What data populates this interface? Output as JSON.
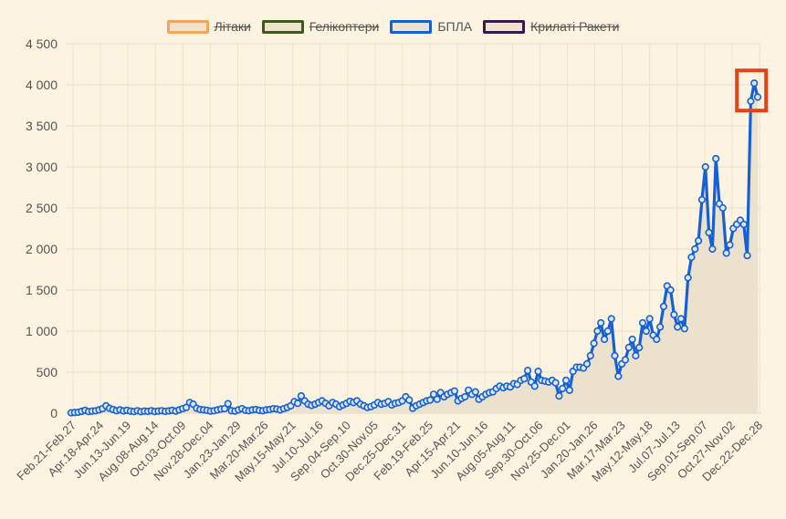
{
  "chart_data": {
    "type": "area",
    "title": "",
    "xlabel": "",
    "ylabel": "",
    "ylim": [
      0,
      4500
    ],
    "yticks": [
      0,
      500,
      1000,
      1500,
      2000,
      2500,
      3000,
      3500,
      4000,
      4500
    ],
    "ytick_labels": [
      "0",
      "500",
      "1 000",
      "1 500",
      "2 000",
      "2 500",
      "3 000",
      "3 500",
      "4 000",
      "4 500"
    ],
    "x_tick_labels": [
      "Feb.21-Feb.27",
      "Apr.18-Apr.24",
      "Jun.13-Jun.19",
      "Aug.08-Aug.14",
      "Oct.03-Oct.09",
      "Nov.28-Dec.04",
      "Jan.23-Jan.29",
      "Mar.20-Mar.26",
      "May.15-May.21",
      "Jul.10-Jul.16",
      "Sep.04-Sep.10",
      "Oct.30-Nov.05",
      "Dec.25-Dec.31",
      "Feb.19-Feb.25",
      "Apr.15-Apr.21",
      "Jun.10-Jun.16",
      "Aug.05-Aug.11",
      "Sep.30-Oct.06",
      "Nov.25-Dec.01",
      "Jan.20-Jan.26",
      "Mar.17-Mar.23",
      "May.12-May.18",
      "Jul.07-Jul.13",
      "Sep.01-Sep.07",
      "Oct.27-Nov.02",
      "Dec.22-Dec.28"
    ],
    "legend": [
      {
        "name": "Літаки",
        "color": "#f2a65a",
        "hidden": true
      },
      {
        "name": "Гелікоптери",
        "color": "#3e5a1e",
        "hidden": true
      },
      {
        "name": "БПЛА",
        "color": "#1560d4",
        "hidden": false
      },
      {
        "name": "Крилаті Ракети",
        "color": "#3a1a4a",
        "hidden": true
      }
    ],
    "series": [
      {
        "name": "БПЛА",
        "color": "#1560d4",
        "fill": "#ece1cc",
        "values": [
          5,
          8,
          12,
          22,
          35,
          20,
          25,
          30,
          40,
          55,
          90,
          60,
          45,
          30,
          40,
          28,
          35,
          25,
          20,
          30,
          18,
          25,
          22,
          30,
          20,
          25,
          30,
          22,
          28,
          35,
          25,
          40,
          55,
          70,
          130,
          110,
          60,
          45,
          40,
          35,
          25,
          30,
          40,
          50,
          55,
          115,
          30,
          25,
          40,
          55,
          35,
          30,
          40,
          45,
          35,
          30,
          40,
          45,
          55,
          50,
          40,
          55,
          70,
          90,
          140,
          120,
          210,
          150,
          110,
          95,
          110,
          130,
          150,
          120,
          90,
          130,
          110,
          80,
          100,
          120,
          145,
          130,
          150,
          110,
          90,
          70,
          80,
          100,
          130,
          110,
          120,
          140,
          100,
          120,
          130,
          150,
          200,
          160,
          60,
          90,
          110,
          130,
          150,
          160,
          230,
          170,
          250,
          200,
          230,
          250,
          270,
          150,
          180,
          200,
          280,
          230,
          260,
          170,
          200,
          230,
          250,
          260,
          300,
          330,
          310,
          330,
          320,
          360,
          350,
          400,
          420,
          520,
          380,
          330,
          510,
          400,
          390,
          380,
          400,
          370,
          210,
          300,
          400,
          280,
          510,
          560,
          560,
          550,
          600,
          700,
          850,
          1000,
          1100,
          900,
          1000,
          1150,
          700,
          450,
          600,
          650,
          800,
          900,
          700,
          800,
          1100,
          1000,
          1150,
          950,
          900,
          1050,
          1300,
          1550,
          1500,
          1200,
          1050,
          1150,
          1030,
          1650,
          1900,
          2000,
          2100,
          2600,
          3000,
          2200,
          2000,
          3100,
          2550,
          2500,
          1950,
          2050,
          2250,
          2300,
          2350,
          2300,
          1920,
          3800,
          4020,
          3850
        ]
      }
    ]
  }
}
